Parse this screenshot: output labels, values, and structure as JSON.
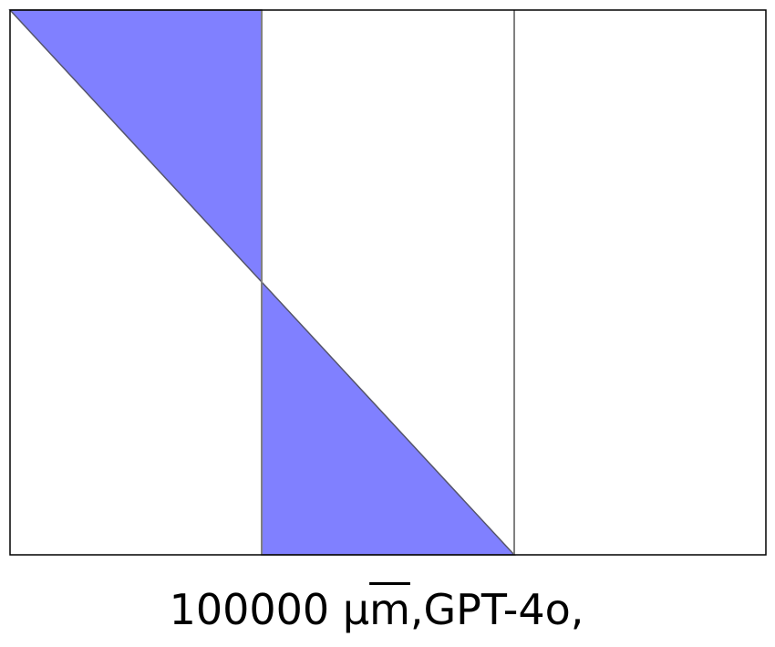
{
  "colors": {
    "fill": "#8080ff",
    "frame": "#000000",
    "divider": "#808080",
    "edge": "#55556a"
  },
  "caption": {
    "value": "100000",
    "unit_prefix": "µ",
    "unit_base": "m",
    "suffix": ",GPT-4o,"
  }
}
